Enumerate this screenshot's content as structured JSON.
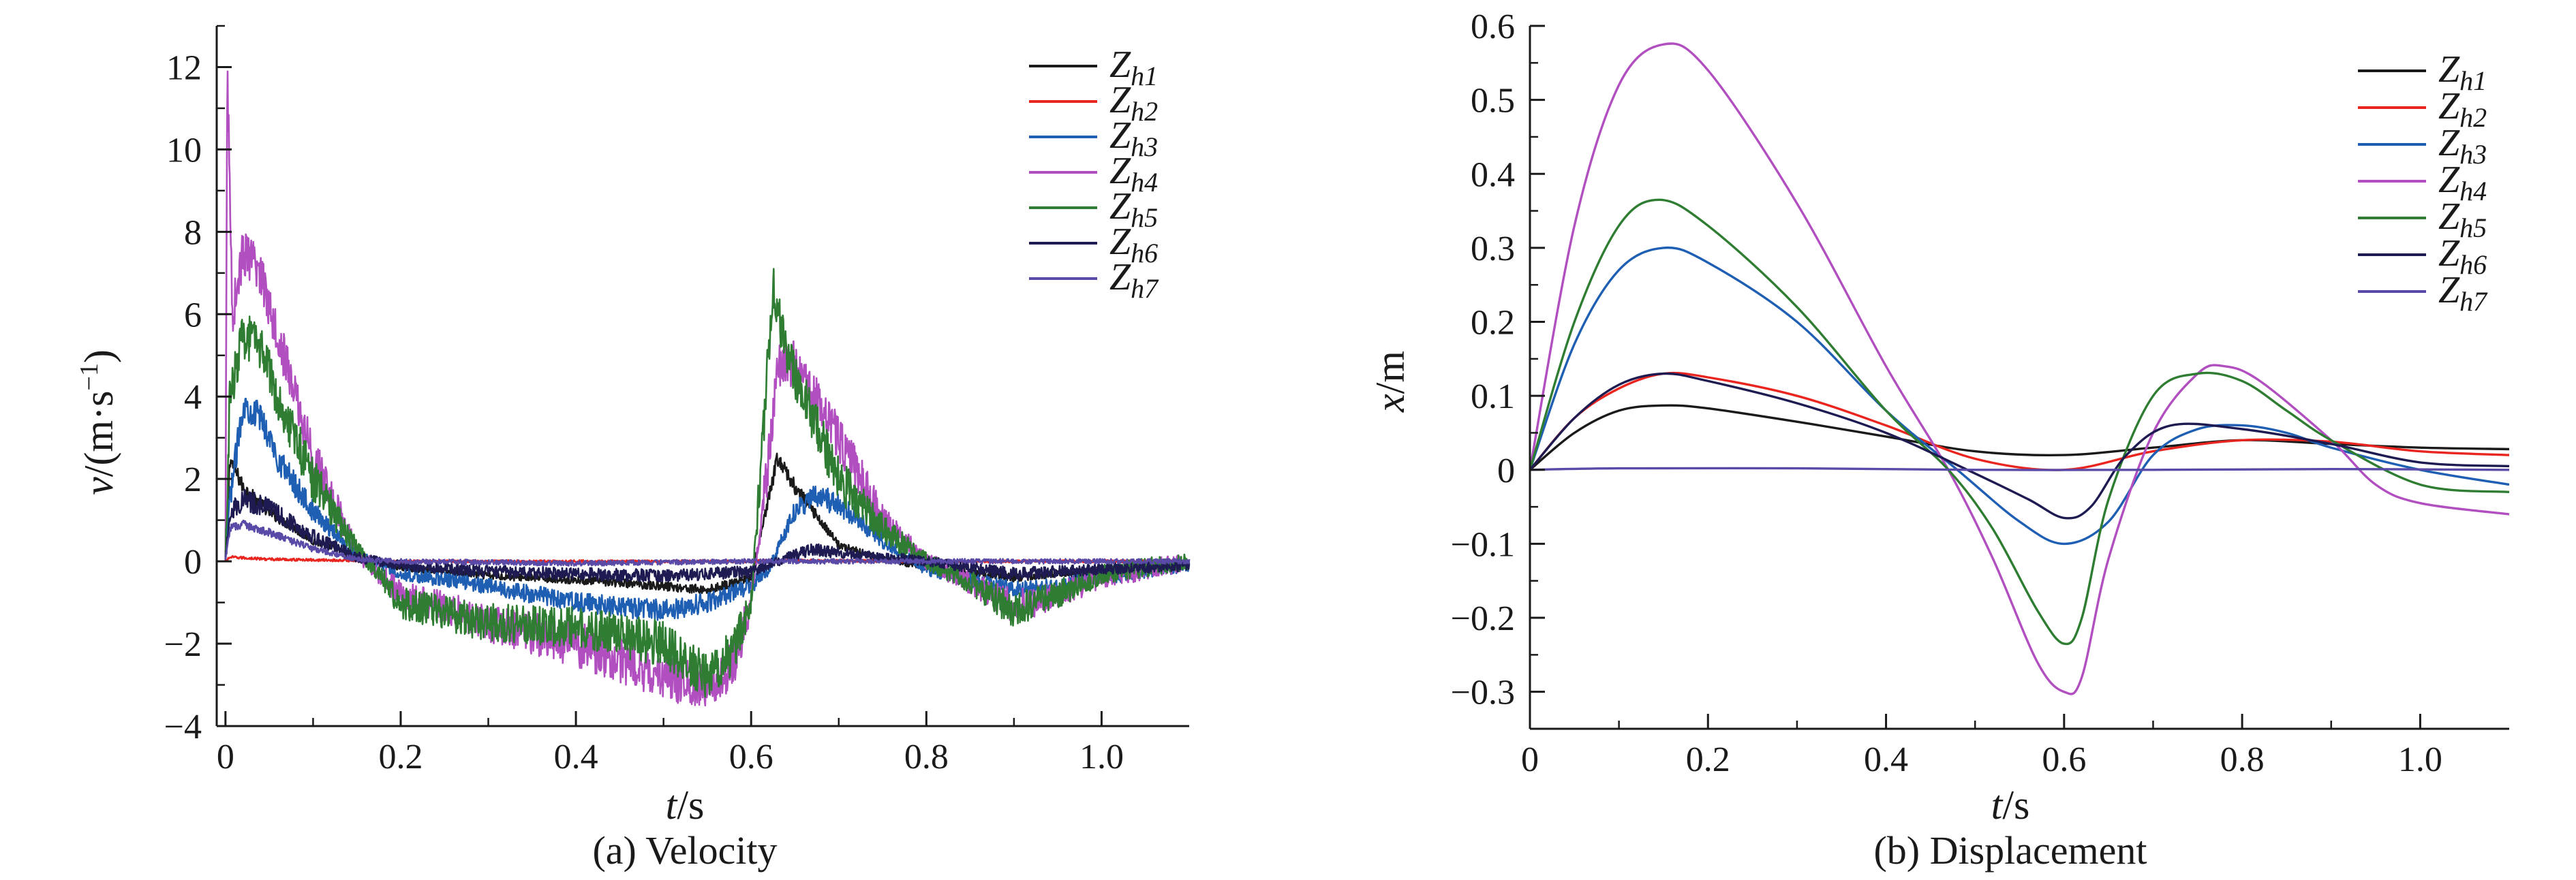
{
  "chart_data": [
    {
      "id": "a",
      "type": "line",
      "caption": "(a) Velocity",
      "xlabel": "t/s",
      "ylabel": "v/(m·s−1)",
      "xlim": [
        -0.01,
        1.1
      ],
      "ylim": [
        -4,
        13
      ],
      "x_ticks": [
        0,
        0.2,
        0.4,
        0.6,
        0.8,
        1.0
      ],
      "x_tick_labels": [
        "0",
        "0.2",
        "0.4",
        "0.6",
        "0.8",
        "1.0"
      ],
      "y_ticks": [
        -4,
        -2,
        0,
        2,
        4,
        6,
        8,
        10,
        12
      ],
      "y_tick_labels": [
        "−4",
        "−2",
        "0",
        "2",
        "4",
        "6",
        "8",
        "10",
        "12"
      ],
      "grid": false,
      "legend_position": "top-right",
      "series": [
        {
          "name": "Zh1",
          "color": "#1a1a1a",
          "noise": 0.12,
          "points": [
            [
              0,
              0
            ],
            [
              0.005,
              2.5
            ],
            [
              0.02,
              1.8
            ],
            [
              0.05,
              1.2
            ],
            [
              0.1,
              0.5
            ],
            [
              0.15,
              0.1
            ],
            [
              0.2,
              -0.15
            ],
            [
              0.3,
              -0.35
            ],
            [
              0.4,
              -0.45
            ],
            [
              0.5,
              -0.6
            ],
            [
              0.55,
              -0.7
            ],
            [
              0.6,
              -0.4
            ],
            [
              0.62,
              1.5
            ],
            [
              0.63,
              2.5
            ],
            [
              0.65,
              1.8
            ],
            [
              0.7,
              0.4
            ],
            [
              0.75,
              0.05
            ],
            [
              0.8,
              -0.15
            ],
            [
              0.9,
              -0.4
            ],
            [
              0.95,
              -0.3
            ],
            [
              1.0,
              -0.2
            ],
            [
              1.1,
              -0.1
            ]
          ]
        },
        {
          "name": "Zh2",
          "color": "#e8251f",
          "noise": 0.05,
          "points": [
            [
              0,
              0
            ],
            [
              0.005,
              0.1
            ],
            [
              0.05,
              0.05
            ],
            [
              0.2,
              0
            ],
            [
              0.6,
              0
            ],
            [
              0.65,
              0.02
            ],
            [
              0.8,
              0
            ],
            [
              1.1,
              0
            ]
          ]
        },
        {
          "name": "Zh3",
          "color": "#1f5fb3",
          "noise": 0.22,
          "points": [
            [
              0,
              0
            ],
            [
              0.005,
              1.5
            ],
            [
              0.02,
              3.8
            ],
            [
              0.04,
              3.5
            ],
            [
              0.06,
              2.5
            ],
            [
              0.1,
              1.2
            ],
            [
              0.15,
              0.2
            ],
            [
              0.2,
              -0.3
            ],
            [
              0.3,
              -0.6
            ],
            [
              0.4,
              -1.0
            ],
            [
              0.5,
              -1.2
            ],
            [
              0.55,
              -1.0
            ],
            [
              0.6,
              -0.6
            ],
            [
              0.62,
              -0.2
            ],
            [
              0.65,
              1.2
            ],
            [
              0.67,
              1.6
            ],
            [
              0.7,
              1.4
            ],
            [
              0.75,
              0.5
            ],
            [
              0.8,
              -0.2
            ],
            [
              0.9,
              -0.7
            ],
            [
              0.95,
              -0.6
            ],
            [
              1.0,
              -0.4
            ],
            [
              1.1,
              -0.1
            ]
          ]
        },
        {
          "name": "Zh4",
          "color": "#b24fc0",
          "noise": 0.35,
          "points": [
            [
              0,
              0
            ],
            [
              0.002,
              12
            ],
            [
              0.008,
              6
            ],
            [
              0.02,
              7.5
            ],
            [
              0.04,
              7.0
            ],
            [
              0.06,
              5.5
            ],
            [
              0.1,
              2.5
            ],
            [
              0.15,
              0.2
            ],
            [
              0.2,
              -0.8
            ],
            [
              0.3,
              -1.5
            ],
            [
              0.4,
              -2.0
            ],
            [
              0.5,
              -2.8
            ],
            [
              0.55,
              -3.1
            ],
            [
              0.58,
              -2.5
            ],
            [
              0.6,
              -1.0
            ],
            [
              0.62,
              2.5
            ],
            [
              0.63,
              4.8
            ],
            [
              0.65,
              4.8
            ],
            [
              0.7,
              3.0
            ],
            [
              0.75,
              1.0
            ],
            [
              0.8,
              0
            ],
            [
              0.85,
              -0.5
            ],
            [
              0.9,
              -1.1
            ],
            [
              0.92,
              -1.0
            ],
            [
              1.0,
              -0.4
            ],
            [
              1.1,
              0
            ]
          ]
        },
        {
          "name": "Zh5",
          "color": "#2f7d32",
          "noise": 0.35,
          "points": [
            [
              0,
              0
            ],
            [
              0.005,
              4.0
            ],
            [
              0.02,
              5.5
            ],
            [
              0.04,
              5.2
            ],
            [
              0.06,
              4.0
            ],
            [
              0.1,
              2.0
            ],
            [
              0.15,
              0.3
            ],
            [
              0.2,
              -1.0
            ],
            [
              0.3,
              -1.5
            ],
            [
              0.4,
              -1.6
            ],
            [
              0.5,
              -2.0
            ],
            [
              0.55,
              -2.8
            ],
            [
              0.58,
              -2.2
            ],
            [
              0.6,
              -1.0
            ],
            [
              0.61,
              2.0
            ],
            [
              0.625,
              6.7
            ],
            [
              0.64,
              5.0
            ],
            [
              0.67,
              3.5
            ],
            [
              0.7,
              2.0
            ],
            [
              0.75,
              0.8
            ],
            [
              0.8,
              0
            ],
            [
              0.85,
              -0.5
            ],
            [
              0.9,
              -1.2
            ],
            [
              0.95,
              -0.8
            ],
            [
              1.0,
              -0.3
            ],
            [
              1.1,
              0
            ]
          ]
        },
        {
          "name": "Zh6",
          "color": "#1e1b52",
          "noise": 0.2,
          "points": [
            [
              0,
              0
            ],
            [
              0.005,
              1.2
            ],
            [
              0.02,
              1.5
            ],
            [
              0.05,
              1.3
            ],
            [
              0.1,
              0.6
            ],
            [
              0.15,
              0.1
            ],
            [
              0.2,
              -0.1
            ],
            [
              0.3,
              -0.25
            ],
            [
              0.4,
              -0.3
            ],
            [
              0.5,
              -0.35
            ],
            [
              0.6,
              -0.25
            ],
            [
              0.63,
              0
            ],
            [
              0.67,
              0.3
            ],
            [
              0.7,
              0.2
            ],
            [
              0.8,
              0
            ],
            [
              0.9,
              -0.3
            ],
            [
              1.0,
              -0.2
            ],
            [
              1.1,
              -0.1
            ]
          ]
        },
        {
          "name": "Zh7",
          "color": "#5a4aa8",
          "noise": 0.1,
          "points": [
            [
              0,
              0
            ],
            [
              0.005,
              0.8
            ],
            [
              0.02,
              0.9
            ],
            [
              0.05,
              0.7
            ],
            [
              0.1,
              0.3
            ],
            [
              0.15,
              0.05
            ],
            [
              0.2,
              0
            ],
            [
              0.4,
              -0.05
            ],
            [
              0.6,
              0
            ],
            [
              0.8,
              0
            ],
            [
              1.1,
              0
            ]
          ]
        }
      ]
    },
    {
      "id": "b",
      "type": "line",
      "caption": "(b) Displacement",
      "xlabel": "t/s",
      "ylabel": "x/m",
      "xlim": [
        0,
        1.1
      ],
      "ylim": [
        -0.35,
        0.6
      ],
      "x_ticks": [
        0,
        0.2,
        0.4,
        0.6,
        0.8,
        1.0
      ],
      "x_tick_labels": [
        "0",
        "0.2",
        "0.4",
        "0.6",
        "0.8",
        "1.0"
      ],
      "y_ticks": [
        -0.3,
        -0.2,
        -0.1,
        0,
        0.1,
        0.2,
        0.3,
        0.4,
        0.5,
        0.6
      ],
      "y_tick_labels": [
        "−0.3",
        "−0.2",
        "−0.1",
        "0",
        "0.1",
        "0.2",
        "0.3",
        "0.4",
        "0.5",
        "0.6"
      ],
      "grid": false,
      "legend_position": "top-right",
      "series": [
        {
          "name": "Zh1",
          "color": "#1a1a1a",
          "points": [
            [
              0,
              0
            ],
            [
              0.05,
              0.05
            ],
            [
              0.1,
              0.08
            ],
            [
              0.15,
              0.087
            ],
            [
              0.2,
              0.083
            ],
            [
              0.3,
              0.065
            ],
            [
              0.4,
              0.045
            ],
            [
              0.5,
              0.025
            ],
            [
              0.6,
              0.02
            ],
            [
              0.7,
              0.03
            ],
            [
              0.8,
              0.04
            ],
            [
              0.9,
              0.035
            ],
            [
              1.0,
              0.03
            ],
            [
              1.1,
              0.028
            ]
          ]
        },
        {
          "name": "Zh2",
          "color": "#e8251f",
          "points": [
            [
              0,
              0
            ],
            [
              0.05,
              0.07
            ],
            [
              0.1,
              0.11
            ],
            [
              0.15,
              0.13
            ],
            [
              0.2,
              0.125
            ],
            [
              0.3,
              0.1
            ],
            [
              0.4,
              0.06
            ],
            [
              0.5,
              0.015
            ],
            [
              0.6,
              0
            ],
            [
              0.7,
              0.025
            ],
            [
              0.8,
              0.04
            ],
            [
              0.9,
              0.038
            ],
            [
              1.0,
              0.025
            ],
            [
              1.1,
              0.02
            ]
          ]
        },
        {
          "name": "Zh3",
          "color": "#1f5fb3",
          "points": [
            [
              0,
              0
            ],
            [
              0.05,
              0.17
            ],
            [
              0.1,
              0.27
            ],
            [
              0.15,
              0.3
            ],
            [
              0.2,
              0.28
            ],
            [
              0.3,
              0.2
            ],
            [
              0.4,
              0.08
            ],
            [
              0.48,
              0
            ],
            [
              0.55,
              -0.07
            ],
            [
              0.6,
              -0.1
            ],
            [
              0.65,
              -0.07
            ],
            [
              0.7,
              0.02
            ],
            [
              0.75,
              0.055
            ],
            [
              0.8,
              0.06
            ],
            [
              0.85,
              0.05
            ],
            [
              0.9,
              0.03
            ],
            [
              1.0,
              0
            ],
            [
              1.1,
              -0.02
            ]
          ]
        },
        {
          "name": "Zh4",
          "color": "#b24fc0",
          "points": [
            [
              0,
              0
            ],
            [
              0.05,
              0.33
            ],
            [
              0.1,
              0.52
            ],
            [
              0.15,
              0.575
            ],
            [
              0.2,
              0.54
            ],
            [
              0.3,
              0.36
            ],
            [
              0.4,
              0.14
            ],
            [
              0.47,
              0
            ],
            [
              0.52,
              -0.12
            ],
            [
              0.57,
              -0.26
            ],
            [
              0.6,
              -0.3
            ],
            [
              0.62,
              -0.28
            ],
            [
              0.65,
              -0.12
            ],
            [
              0.7,
              0.05
            ],
            [
              0.75,
              0.13
            ],
            [
              0.78,
              0.14
            ],
            [
              0.82,
              0.12
            ],
            [
              0.9,
              0.04
            ],
            [
              0.95,
              -0.02
            ],
            [
              1.0,
              -0.045
            ],
            [
              1.1,
              -0.06
            ]
          ]
        },
        {
          "name": "Zh5",
          "color": "#2f7d32",
          "points": [
            [
              0,
              0
            ],
            [
              0.05,
              0.2
            ],
            [
              0.1,
              0.33
            ],
            [
              0.145,
              0.365
            ],
            [
              0.2,
              0.33
            ],
            [
              0.3,
              0.22
            ],
            [
              0.4,
              0.08
            ],
            [
              0.47,
              0
            ],
            [
              0.52,
              -0.08
            ],
            [
              0.57,
              -0.19
            ],
            [
              0.6,
              -0.235
            ],
            [
              0.62,
              -0.2
            ],
            [
              0.65,
              -0.04
            ],
            [
              0.7,
              0.1
            ],
            [
              0.75,
              0.13
            ],
            [
              0.8,
              0.12
            ],
            [
              0.85,
              0.08
            ],
            [
              0.9,
              0.04
            ],
            [
              1.0,
              -0.02
            ],
            [
              1.1,
              -0.03
            ]
          ]
        },
        {
          "name": "Zh6",
          "color": "#1e1b52",
          "points": [
            [
              0,
              0
            ],
            [
              0.05,
              0.07
            ],
            [
              0.1,
              0.115
            ],
            [
              0.15,
              0.13
            ],
            [
              0.2,
              0.12
            ],
            [
              0.3,
              0.09
            ],
            [
              0.4,
              0.05
            ],
            [
              0.5,
              -0.005
            ],
            [
              0.56,
              -0.04
            ],
            [
              0.6,
              -0.065
            ],
            [
              0.63,
              -0.05
            ],
            [
              0.67,
              0.02
            ],
            [
              0.72,
              0.06
            ],
            [
              0.8,
              0.055
            ],
            [
              0.9,
              0.035
            ],
            [
              1.0,
              0.01
            ],
            [
              1.1,
              0.005
            ]
          ]
        },
        {
          "name": "Zh7",
          "color": "#5a4aa8",
          "points": [
            [
              0,
              0
            ],
            [
              0.1,
              0.002
            ],
            [
              0.3,
              0.002
            ],
            [
              0.5,
              0
            ],
            [
              0.7,
              0
            ],
            [
              0.9,
              0.001
            ],
            [
              1.1,
              0
            ]
          ]
        }
      ]
    }
  ]
}
